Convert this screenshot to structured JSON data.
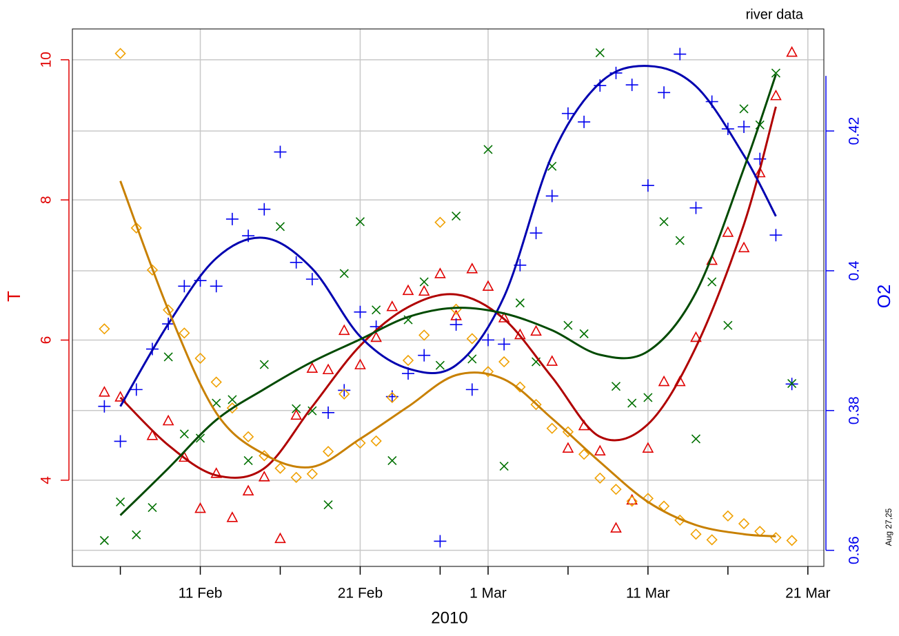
{
  "chart_data": {
    "type": "scatter",
    "title": "river data",
    "xlabel": "2010",
    "ylabel": "T",
    "y2label": "O2",
    "stamp": "Aug 27,25",
    "x": [
      "2010-02-05",
      "2010-02-06",
      "2010-02-07",
      "2010-02-08",
      "2010-02-09",
      "2010-02-10",
      "2010-02-11",
      "2010-02-12",
      "2010-02-13",
      "2010-02-14",
      "2010-02-15",
      "2010-02-16",
      "2010-02-17",
      "2010-02-18",
      "2010-02-19",
      "2010-02-20",
      "2010-02-21",
      "2010-02-22",
      "2010-02-23",
      "2010-02-24",
      "2010-02-25",
      "2010-02-26",
      "2010-02-27",
      "2010-02-28",
      "2010-03-01",
      "2010-03-02",
      "2010-03-03",
      "2010-03-04",
      "2010-03-05",
      "2010-03-06",
      "2010-03-07",
      "2010-03-08",
      "2010-03-09",
      "2010-03-10",
      "2010-03-11",
      "2010-03-12",
      "2010-03-13",
      "2010-03-14",
      "2010-03-15",
      "2010-03-16",
      "2010-03-17",
      "2010-03-18",
      "2010-03-19",
      "2010-03-20"
    ],
    "fit_x": [
      "2010-02-06",
      "2010-02-09",
      "2010-02-12",
      "2010-02-15",
      "2010-02-18",
      "2010-02-21",
      "2010-02-24",
      "2010-02-27",
      "2010-03-02",
      "2010-03-05",
      "2010-03-08",
      "2010-03-11",
      "2010-03-14",
      "2010-03-17",
      "2010-03-19"
    ],
    "xlim": [
      "2010-02-03",
      "2010-03-22"
    ],
    "xticks": [
      {
        "value": "2010-02-11",
        "label": "11 Feb"
      },
      {
        "value": "2010-02-21",
        "label": "21 Feb"
      },
      {
        "value": "2010-03-01",
        "label": "1 Mar"
      },
      {
        "value": "2010-03-11",
        "label": "11 Mar"
      },
      {
        "value": "2010-03-21",
        "label": "21 Mar"
      }
    ],
    "xminor_ticks": [
      "2010-02-06",
      "2010-02-16",
      "2010-02-26",
      "2010-03-06",
      "2010-03-16"
    ],
    "ylim": [
      2.77,
      10.44
    ],
    "yticks": [
      4,
      6,
      8,
      10
    ],
    "y2lim": [
      0.3577,
      0.4346
    ],
    "y2ticks": [
      0.36,
      0.38,
      0.4,
      0.42
    ],
    "grid": true,
    "y_color": "#e00000",
    "y2_color": "#0000ee",
    "series": [
      {
        "marker": "triangle",
        "color": "#e00000",
        "fit_color": "#b00000",
        "values": [
          5.25,
          5.18,
          null,
          4.63,
          4.84,
          4.32,
          3.59,
          4.09,
          3.46,
          3.84,
          4.04,
          3.16,
          4.92,
          5.59,
          5.57,
          6.13,
          5.64,
          6.03,
          6.47,
          6.7,
          6.69,
          6.94,
          6.34,
          7.01,
          6.76,
          6.31,
          6.07,
          6.12,
          5.69,
          4.45,
          4.77,
          4.41,
          3.31,
          3.71,
          4.45,
          5.4,
          5.4,
          6.03,
          7.13,
          7.53,
          7.31,
          8.38,
          9.48,
          10.1
        ],
        "fit": [
          5.18,
          4.5,
          4.07,
          4.17,
          5.05,
          5.92,
          6.47,
          6.65,
          6.3,
          5.47,
          4.62,
          4.8,
          5.9,
          7.65,
          9.33
        ]
      },
      {
        "marker": "plus",
        "color": "#0000ee",
        "fit_color": "#0000b0",
        "axis": "y2",
        "values": [
          0.3806,
          0.3756,
          0.383,
          0.3888,
          0.3924,
          0.3978,
          0.3986,
          0.3978,
          0.4074,
          0.405,
          0.4088,
          0.417,
          0.4012,
          0.3988,
          0.3797,
          0.3829,
          0.3941,
          0.392,
          0.382,
          0.3853,
          0.3879,
          0.3613,
          0.3923,
          0.383,
          0.3901,
          0.3895,
          0.4008,
          0.4054,
          0.4107,
          0.4225,
          0.4213,
          0.4265,
          0.4283,
          0.4266,
          0.4122,
          0.4255,
          0.431,
          0.409,
          0.4242,
          0.4203,
          0.4206,
          0.416,
          0.4051,
          0.3838
        ],
        "fit": [
          0.3806,
          0.3924,
          0.4018,
          0.4047,
          0.4003,
          0.3906,
          0.386,
          0.3865,
          0.3963,
          0.4165,
          0.4269,
          0.4293,
          0.4264,
          0.4165,
          0.4078
        ]
      },
      {
        "marker": "cross",
        "color": "#007000",
        "fit_color": "#004a00",
        "values": [
          3.14,
          3.69,
          3.22,
          3.61,
          5.76,
          4.66,
          4.6,
          5.1,
          5.15,
          4.28,
          5.65,
          7.62,
          5.02,
          4.99,
          3.65,
          6.95,
          7.69,
          6.43,
          4.28,
          6.29,
          6.83,
          5.64,
          7.77,
          5.73,
          8.72,
          4.2,
          6.53,
          5.69,
          8.48,
          6.21,
          6.09,
          10.1,
          5.34,
          5.1,
          5.18,
          7.69,
          7.42,
          4.59,
          6.83,
          6.21,
          9.3,
          9.07,
          9.81,
          5.38
        ],
        "fit": [
          3.5,
          4.17,
          4.86,
          5.3,
          5.69,
          6.01,
          6.33,
          6.46,
          6.38,
          6.14,
          5.79,
          5.84,
          6.68,
          8.45,
          9.79
        ]
      },
      {
        "marker": "diamond",
        "color": "#f0a000",
        "fit_color": "#c88000",
        "values": [
          6.16,
          10.09,
          7.6,
          7.0,
          6.43,
          6.1,
          5.74,
          5.4,
          5.03,
          4.62,
          4.35,
          4.17,
          4.04,
          4.09,
          4.41,
          5.23,
          4.53,
          4.56,
          5.18,
          5.71,
          6.07,
          7.68,
          6.44,
          6.02,
          5.55,
          5.69,
          5.33,
          5.08,
          4.74,
          4.69,
          4.37,
          4.03,
          3.87,
          3.7,
          3.74,
          3.63,
          3.43,
          3.23,
          3.15,
          3.49,
          3.38,
          3.27,
          3.18,
          3.14
        ],
        "fit": [
          8.27,
          6.43,
          4.96,
          4.37,
          4.19,
          4.59,
          5.05,
          5.5,
          5.44,
          4.88,
          4.26,
          3.69,
          3.36,
          3.23,
          3.2
        ]
      }
    ]
  }
}
